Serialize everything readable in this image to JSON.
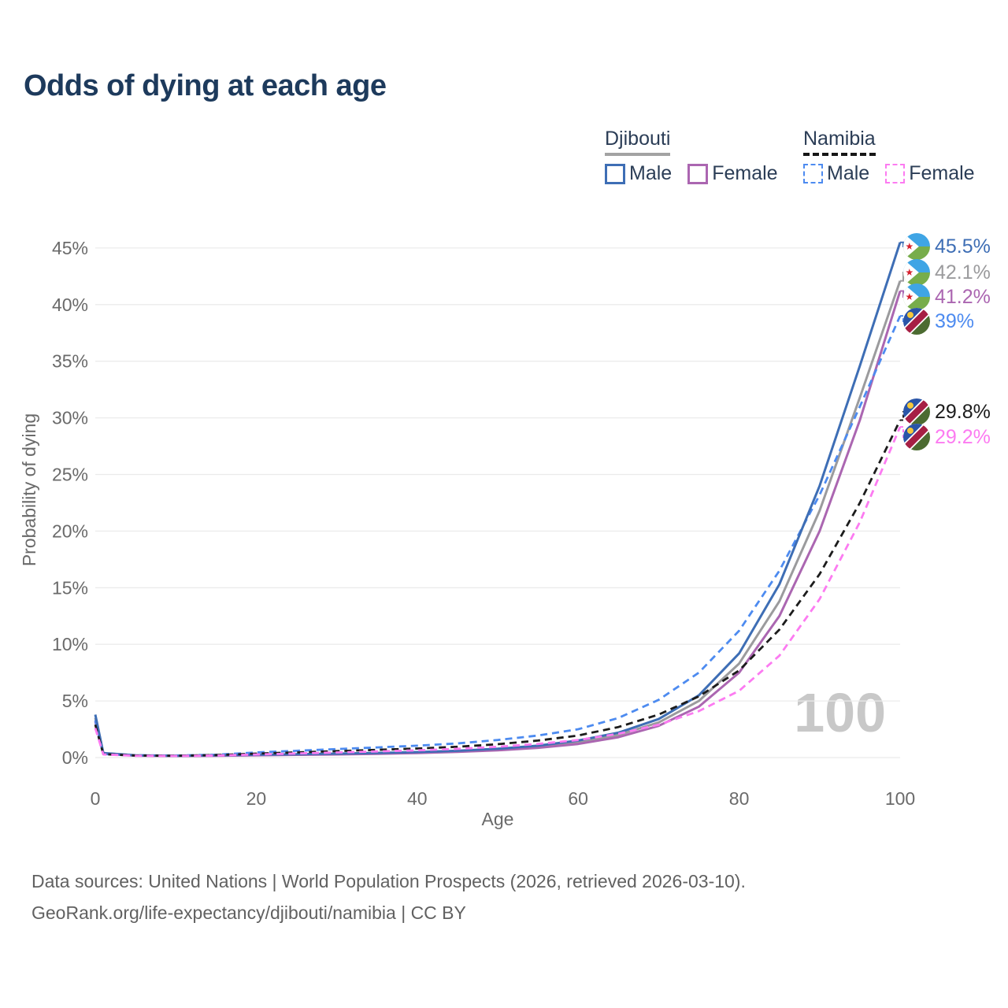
{
  "title": "Odds of dying at each age",
  "legend": {
    "groups": [
      {
        "id": "djibouti",
        "label": "Djibouti",
        "line_style": "solid",
        "items": [
          {
            "id": "dj_male",
            "label": "Male"
          },
          {
            "id": "dj_female",
            "label": "Female"
          }
        ]
      },
      {
        "id": "namibia",
        "label": "Namibia",
        "line_style": "dashed",
        "items": [
          {
            "id": "nam_male",
            "label": "Male"
          },
          {
            "id": "nam_female",
            "label": "Female"
          }
        ]
      }
    ]
  },
  "watermark_age": "100",
  "footer": {
    "line1": "Data sources: United Nations | World Population Prospects (2026, retrieved 2026-03-10).",
    "line2": "GeoRank.org/life-expectancy/djibouti/namibia | CC BY"
  },
  "chart_data": {
    "type": "line",
    "title": "Odds of dying at each age",
    "xlabel": "Age",
    "ylabel": "Probability of dying",
    "xlim": [
      0,
      100
    ],
    "ylim": [
      0,
      46
    ],
    "x_ticks": [
      0,
      20,
      40,
      60,
      80,
      100
    ],
    "y_ticks": [
      0,
      5,
      10,
      15,
      20,
      25,
      30,
      35,
      40,
      45
    ],
    "y_tick_suffix": "%",
    "grid": "horizontal",
    "legend_position": "top-right",
    "ages": [
      0,
      1,
      5,
      10,
      15,
      20,
      25,
      30,
      35,
      40,
      45,
      50,
      55,
      60,
      65,
      70,
      75,
      80,
      85,
      90,
      95,
      100
    ],
    "series": [
      {
        "id": "dj_male",
        "name": "Djibouti Male",
        "country": "djibouti",
        "color": "#3e6eb5",
        "line_style": "solid",
        "end_label": "45.5%",
        "values": [
          3.8,
          0.4,
          0.2,
          0.16,
          0.2,
          0.25,
          0.3,
          0.35,
          0.41,
          0.49,
          0.6,
          0.78,
          1.05,
          1.5,
          2.2,
          3.4,
          5.5,
          9.2,
          15.3,
          24.0,
          34.6,
          45.5
        ]
      },
      {
        "id": "dj_both",
        "name": "Djibouti",
        "country": "djibouti",
        "color": "#9b9b9d",
        "line_style": "solid",
        "end_label": "42.1%",
        "values": [
          3.5,
          0.36,
          0.18,
          0.15,
          0.18,
          0.22,
          0.27,
          0.32,
          0.37,
          0.44,
          0.55,
          0.7,
          0.95,
          1.35,
          2.0,
          3.1,
          5.0,
          8.3,
          13.8,
          21.8,
          31.8,
          42.1
        ]
      },
      {
        "id": "dj_female",
        "name": "Djibouti Female",
        "country": "djibouti",
        "color": "#ab66b1",
        "line_style": "solid",
        "end_label": "41.2%",
        "values": [
          3.2,
          0.33,
          0.17,
          0.14,
          0.16,
          0.2,
          0.24,
          0.28,
          0.33,
          0.4,
          0.5,
          0.64,
          0.86,
          1.2,
          1.8,
          2.8,
          4.5,
          7.5,
          12.5,
          20.0,
          29.8,
          41.2
        ]
      },
      {
        "id": "nam_male",
        "name": "Namibia Male",
        "country": "namibia",
        "color": "#4d8bf0",
        "line_style": "dashed",
        "end_label": "39%",
        "values": [
          3.3,
          0.32,
          0.2,
          0.18,
          0.25,
          0.45,
          0.6,
          0.75,
          0.9,
          1.05,
          1.25,
          1.55,
          1.95,
          2.5,
          3.5,
          5.1,
          7.5,
          11.2,
          16.5,
          23.2,
          31.0,
          39.0
        ]
      },
      {
        "id": "nam_both",
        "name": "Namibia",
        "country": "namibia",
        "color": "#1c1c1c",
        "line_style": "dashed",
        "end_label": "29.8%",
        "values": [
          2.9,
          0.3,
          0.18,
          0.16,
          0.22,
          0.35,
          0.46,
          0.57,
          0.68,
          0.8,
          0.95,
          1.18,
          1.5,
          1.95,
          2.7,
          3.8,
          5.4,
          7.7,
          11.3,
          16.2,
          22.5,
          29.8
        ]
      },
      {
        "id": "nam_female",
        "name": "Namibia Female",
        "country": "namibia",
        "color": "#fc7bf1",
        "line_style": "dashed",
        "end_label": "29.2%",
        "values": [
          2.6,
          0.28,
          0.16,
          0.14,
          0.18,
          0.27,
          0.36,
          0.45,
          0.54,
          0.64,
          0.77,
          0.95,
          1.2,
          1.55,
          2.1,
          2.9,
          4.1,
          5.9,
          9.0,
          14.0,
          20.8,
          29.2
        ]
      }
    ]
  },
  "colors": {
    "title_text": "#1d3a5c",
    "legend_text": "#2b3d56",
    "axis_text": "#6a6a6a",
    "gridline": "#ebebeb",
    "watermark": "#c8c8c8",
    "footer_text": "#616161",
    "djibouti_underline": "#a3a3a3",
    "namibia_underline": "#161616"
  }
}
